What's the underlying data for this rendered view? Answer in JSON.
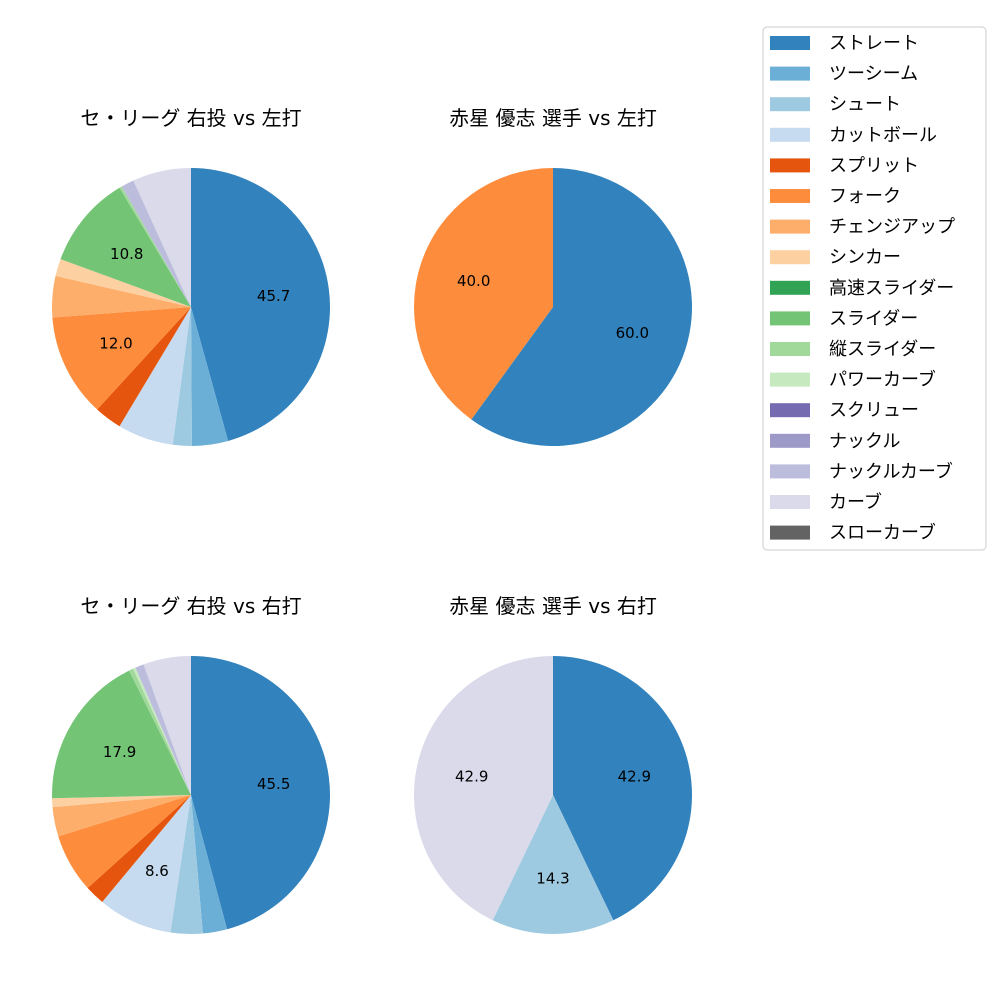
{
  "pitch_types": [
    {
      "name": "ストレート",
      "color": "#3182bd"
    },
    {
      "name": "ツーシーム",
      "color": "#6baed6"
    },
    {
      "name": "シュート",
      "color": "#9ecae1"
    },
    {
      "name": "カットボール",
      "color": "#c6dbef"
    },
    {
      "name": "スプリット",
      "color": "#e6550d"
    },
    {
      "name": "フォーク",
      "color": "#fd8d3c"
    },
    {
      "name": "チェンジアップ",
      "color": "#fdae6b"
    },
    {
      "name": "シンカー",
      "color": "#fdd0a2"
    },
    {
      "name": "高速スライダー",
      "color": "#31a354"
    },
    {
      "name": "スライダー",
      "color": "#74c476"
    },
    {
      "name": "縦スライダー",
      "color": "#a1d99b"
    },
    {
      "name": "パワーカーブ",
      "color": "#c7e9c0"
    },
    {
      "name": "スクリュー",
      "color": "#756bb1"
    },
    {
      "name": "ナックル",
      "color": "#9e9ac8"
    },
    {
      "name": "ナックルカーブ",
      "color": "#bcbddc"
    },
    {
      "name": "カーブ",
      "color": "#dadaeb"
    },
    {
      "name": "スローカーブ",
      "color": "#636363"
    }
  ],
  "chart_data": [
    {
      "type": "pie",
      "title": "セ・リーグ 右投 vs 左打",
      "slices": [
        {
          "category": "ストレート",
          "value": 45.7,
          "label": "45.7"
        },
        {
          "category": "ツーシーム",
          "value": 4.2
        },
        {
          "category": "シュート",
          "value": 2.2
        },
        {
          "category": "カットボール",
          "value": 6.5
        },
        {
          "category": "スプリット",
          "value": 3.2
        },
        {
          "category": "フォーク",
          "value": 12.0,
          "label": "12.0"
        },
        {
          "category": "チェンジアップ",
          "value": 4.8
        },
        {
          "category": "シンカー",
          "value": 2.0
        },
        {
          "category": "スライダー",
          "value": 10.8,
          "label": "10.8"
        },
        {
          "category": "縦スライダー",
          "value": 0.3
        },
        {
          "category": "ナックルカーブ",
          "value": 1.5
        },
        {
          "category": "カーブ",
          "value": 6.8
        }
      ]
    },
    {
      "type": "pie",
      "title": "赤星 優志 選手 vs 左打",
      "slices": [
        {
          "category": "ストレート",
          "value": 60.0,
          "label": "60.0"
        },
        {
          "category": "フォーク",
          "value": 40.0,
          "label": "40.0"
        }
      ]
    },
    {
      "type": "pie",
      "title": "セ・リーグ 右投 vs 右打",
      "slices": [
        {
          "category": "ストレート",
          "value": 45.5,
          "label": "45.5"
        },
        {
          "category": "ツーシーム",
          "value": 2.8
        },
        {
          "category": "シュート",
          "value": 3.7
        },
        {
          "category": "カットボール",
          "value": 8.6,
          "label": "8.6"
        },
        {
          "category": "スプリット",
          "value": 2.3
        },
        {
          "category": "フォーク",
          "value": 6.8
        },
        {
          "category": "チェンジアップ",
          "value": 3.4
        },
        {
          "category": "シンカー",
          "value": 1.0
        },
        {
          "category": "スライダー",
          "value": 17.9,
          "label": "17.9"
        },
        {
          "category": "縦スライダー",
          "value": 0.5
        },
        {
          "category": "パワーカーブ",
          "value": 0.3
        },
        {
          "category": "ナックルカーブ",
          "value": 1.0
        },
        {
          "category": "カーブ",
          "value": 5.5
        }
      ]
    },
    {
      "type": "pie",
      "title": "赤星 優志 選手 vs 右打",
      "slices": [
        {
          "category": "ストレート",
          "value": 42.9,
          "label": "42.9"
        },
        {
          "category": "シュート",
          "value": 14.3,
          "label": "14.3"
        },
        {
          "category": "カーブ",
          "value": 42.9,
          "label": "42.9"
        }
      ]
    }
  ]
}
